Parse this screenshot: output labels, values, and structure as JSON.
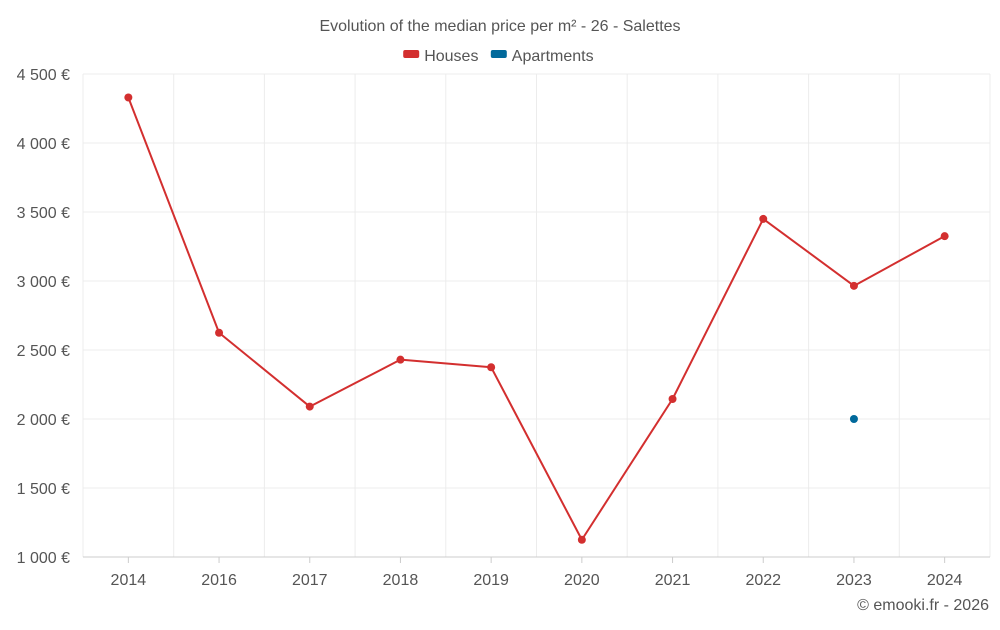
{
  "chart_data": {
    "type": "line",
    "title": "Evolution of the median price per m² - 26 - Salettes",
    "categories": [
      "2014",
      "2016",
      "2017",
      "2018",
      "2019",
      "2020",
      "2021",
      "2022",
      "2023",
      "2024"
    ],
    "series": [
      {
        "name": "Houses",
        "color": "#d32f2f",
        "values": [
          4330,
          2625,
          2090,
          2430,
          2375,
          1125,
          2145,
          3450,
          2965,
          3325
        ]
      },
      {
        "name": "Apartments",
        "color": "#01699b",
        "values": [
          null,
          null,
          null,
          null,
          null,
          null,
          null,
          null,
          2000,
          null
        ]
      }
    ],
    "ylim": [
      1000,
      4500
    ],
    "yticks": [
      1000,
      1500,
      2000,
      2500,
      3000,
      3500,
      4000,
      4500
    ],
    "ytick_labels": [
      "1 000 €",
      "1 500 €",
      "2 000 €",
      "2 500 €",
      "3 000 €",
      "3 500 €",
      "4 000 €",
      "4 500 €"
    ],
    "xlabel": "",
    "ylabel": "",
    "grid": true,
    "legend_position": "top-center"
  },
  "credit": "© emooki.fr - 2026"
}
